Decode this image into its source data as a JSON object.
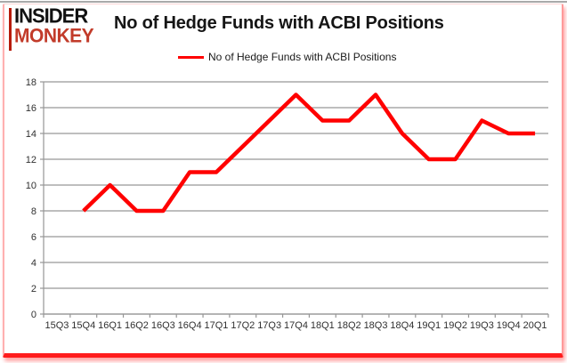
{
  "brand": {
    "line1": "INSIDER",
    "line2": "MONKEY"
  },
  "header": {
    "title": "No of Hedge Funds with ACBI Positions"
  },
  "legend": {
    "label": "No of Hedge Funds with ACBI Positions"
  },
  "colors": {
    "line": "#ff0000",
    "grid": "#969696",
    "axis_text": "#303030",
    "brand_black": "#111111",
    "brand_red": "#c23b2a",
    "frame_red": "#ff1c1c"
  },
  "chart_data": {
    "type": "line",
    "title": "No of Hedge Funds with ACBI Positions",
    "categories": [
      "15Q3",
      "15Q4",
      "16Q1",
      "16Q2",
      "16Q3",
      "16Q4",
      "17Q1",
      "17Q2",
      "17Q3",
      "17Q4",
      "18Q1",
      "18Q2",
      "18Q3",
      "18Q4",
      "19Q1",
      "19Q2",
      "19Q3",
      "19Q4",
      "20Q1"
    ],
    "series": [
      {
        "name": "No of Hedge Funds with ACBI Positions",
        "values": [
          null,
          8,
          10,
          8,
          8,
          11,
          11,
          13,
          15,
          17,
          15,
          15,
          17,
          14,
          12,
          12,
          15,
          14,
          14
        ]
      }
    ],
    "ylim": [
      0,
      18
    ],
    "yticks": [
      0,
      2,
      4,
      6,
      8,
      10,
      12,
      14,
      16,
      18
    ],
    "grid": true,
    "legend_position": "top"
  }
}
